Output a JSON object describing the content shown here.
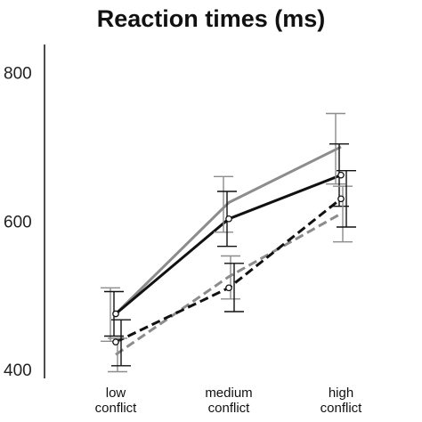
{
  "chart_data": {
    "type": "line",
    "title": "Reaction times (ms)",
    "categories": [
      [
        "low",
        "conflict"
      ],
      [
        "medium",
        "conflict"
      ],
      [
        "high",
        "conflict"
      ]
    ],
    "yticks": [
      400,
      600,
      800
    ],
    "ylim": [
      388,
      838
    ],
    "grid": false,
    "legend": "none",
    "series": [
      {
        "color": "#8c8c8c",
        "dash": false,
        "marker": false,
        "values": [
          475,
          625,
          700
        ],
        "err_low": [
          438,
          585,
          650
        ],
        "err_high": [
          510,
          660,
          745
        ]
      },
      {
        "color": "#111111",
        "dash": false,
        "marker": true,
        "values": [
          475,
          603,
          662
        ],
        "err_low": [
          445,
          566,
          620
        ],
        "err_high": [
          505,
          640,
          704
        ]
      },
      {
        "color": "#8c8c8c",
        "dash": true,
        "marker": false,
        "values": [
          420,
          525,
          610
        ],
        "err_low": [
          397,
          495,
          572
        ],
        "err_high": [
          442,
          553,
          647
        ]
      },
      {
        "color": "#111111",
        "dash": true,
        "marker": true,
        "values": [
          437,
          510,
          630
        ],
        "err_low": [
          405,
          478,
          592
        ],
        "err_high": [
          467,
          543,
          668
        ]
      }
    ]
  }
}
